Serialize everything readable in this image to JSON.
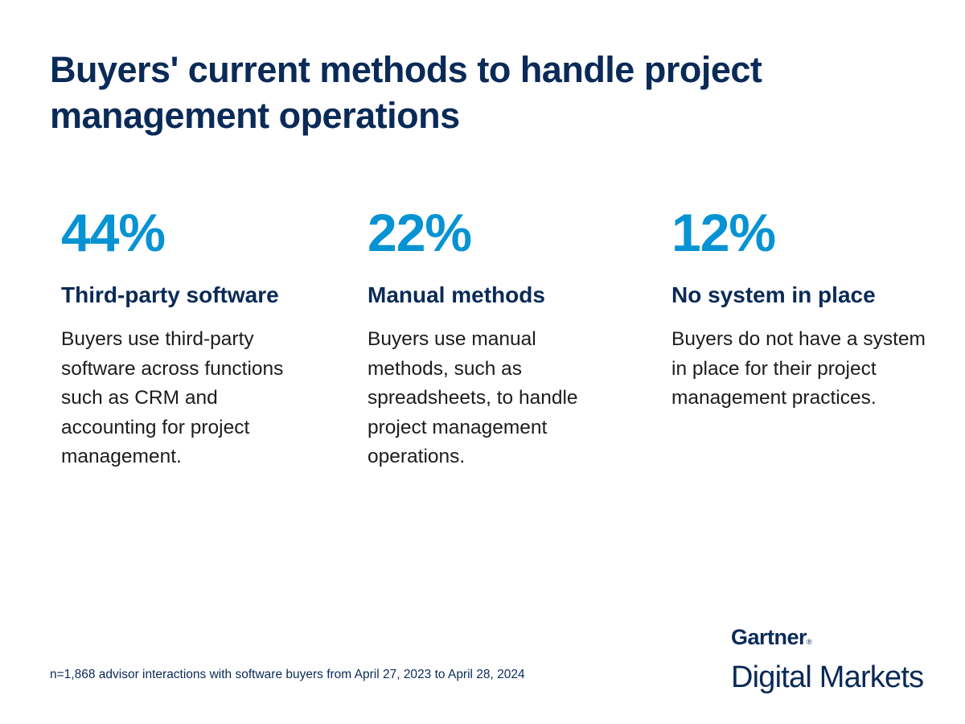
{
  "colors": {
    "navy": "#0a2a57",
    "accent_blue": "#0693d3",
    "body_text": "#1c1c1c",
    "background": "#ffffff"
  },
  "title": "Buyers' current methods to handle project management operations",
  "stats": [
    {
      "value": "44%",
      "heading": "Third-party software",
      "description": "Buyers use third-party software across functions such as CRM and accounting for project management."
    },
    {
      "value": "22%",
      "heading": "Manual methods",
      "description": "Buyers use manual methods, such as spreadsheets, to handle project management operations."
    },
    {
      "value": "12%",
      "heading": "No system in place",
      "description": "Buyers do not have a system in place for their project management practices."
    }
  ],
  "footnote": "n=1,868 advisor interactions with software buyers from April 27, 2023 to April 28, 2024",
  "logo": {
    "brand": "Gartner",
    "registered_mark": "®",
    "product": "Digital Markets"
  }
}
